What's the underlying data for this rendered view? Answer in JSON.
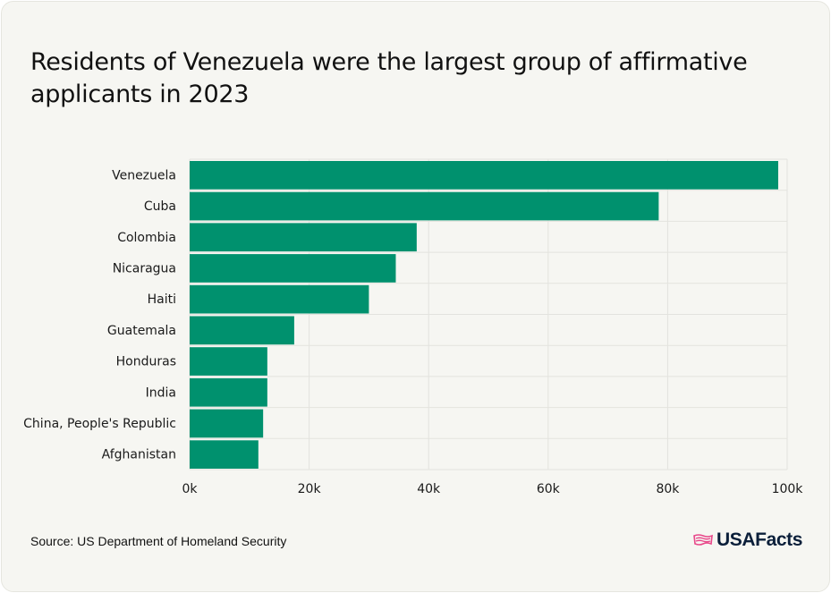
{
  "title": "Residents of Venezuela were the largest group of affirmative applicants in 2023",
  "source": "Source: US Department of Homeland Security",
  "brand": {
    "name": "USAFacts",
    "icon": "us-map-flag-icon",
    "color": "#0b1f3a",
    "icon_color": "#e8488a"
  },
  "colors": {
    "bar": "#00916e",
    "grid": "#e3e3de",
    "background": "#f6f6f2"
  },
  "chart_data": {
    "type": "bar",
    "orientation": "horizontal",
    "categories": [
      "Venezuela",
      "Cuba",
      "Colombia",
      "Nicaragua",
      "Haiti",
      "Guatemala",
      "Honduras",
      "India",
      "China, People's Republic",
      "Afghanistan"
    ],
    "values": [
      98500,
      78500,
      38000,
      34500,
      30000,
      17500,
      13000,
      13000,
      12300,
      11500
    ],
    "xlim": [
      0,
      100000
    ],
    "xticks": [
      0,
      20000,
      40000,
      60000,
      80000,
      100000
    ],
    "xtick_labels": [
      "0k",
      "20k",
      "40k",
      "60k",
      "80k",
      "100k"
    ],
    "title": "Residents of Venezuela were the largest group of affirmative applicants in 2023",
    "xlabel": "",
    "ylabel": "",
    "grid": true
  }
}
